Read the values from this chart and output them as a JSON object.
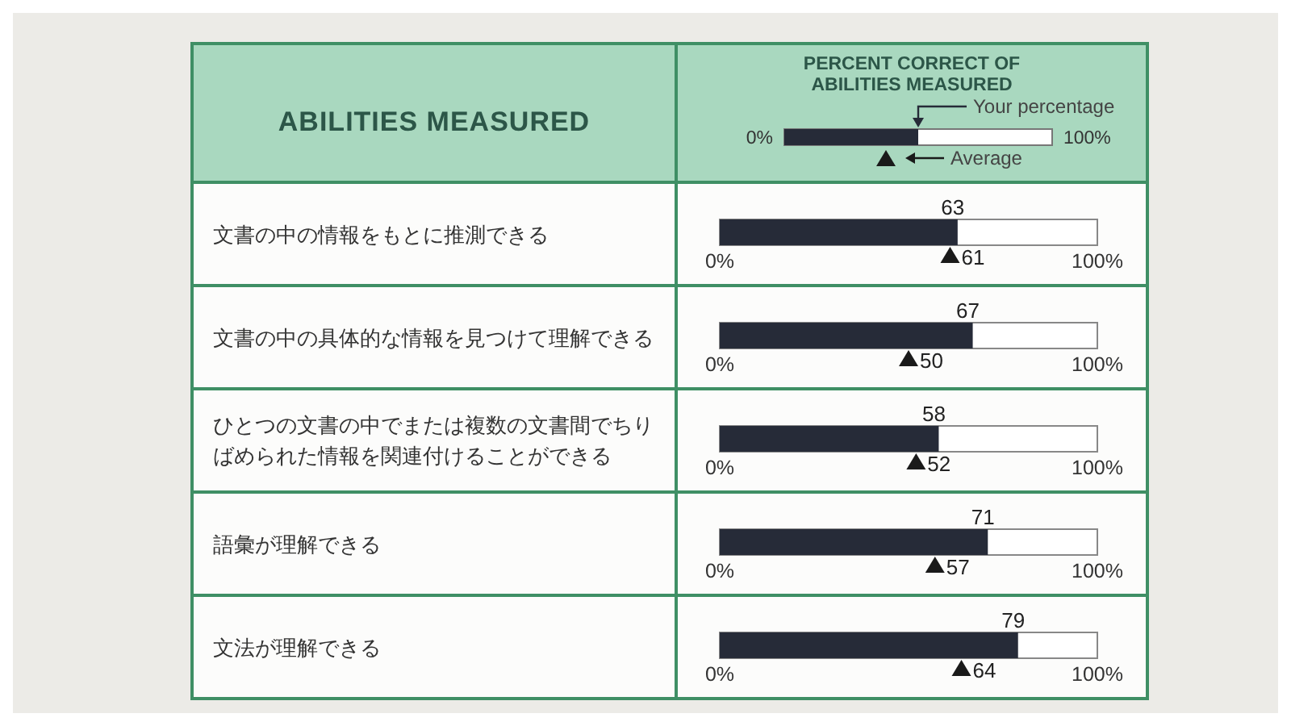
{
  "chart_data": {
    "type": "bar",
    "orientation": "horizontal",
    "title": "PERCENT CORRECT OF ABILITIES MEASURED",
    "ylabel": "ABILITIES MEASURED",
    "categories": [
      "文書の中の情報をもとに推測できる",
      "文書の中の具体的な情報を見つけて理解できる",
      "ひとつの文書の中でまたは複数の文書間でちりばめられた情報を関連付けることができる",
      "語彙が理解できる",
      "文法が理解できる"
    ],
    "series": [
      {
        "name": "Your percentage",
        "type": "bar",
        "color": "#262b38",
        "values": [
          63,
          67,
          58,
          71,
          79
        ]
      },
      {
        "name": "Average",
        "type": "scatter",
        "color": "#1a1a1a",
        "values": [
          61,
          50,
          52,
          57,
          64
        ]
      }
    ],
    "marker": "triangle",
    "xlim": [
      0,
      100
    ],
    "xticks": [
      {
        "value": 0,
        "label": "0%"
      },
      {
        "value": 100,
        "label": "100%"
      }
    ],
    "data_labels": true,
    "legend": "top"
  }
}
